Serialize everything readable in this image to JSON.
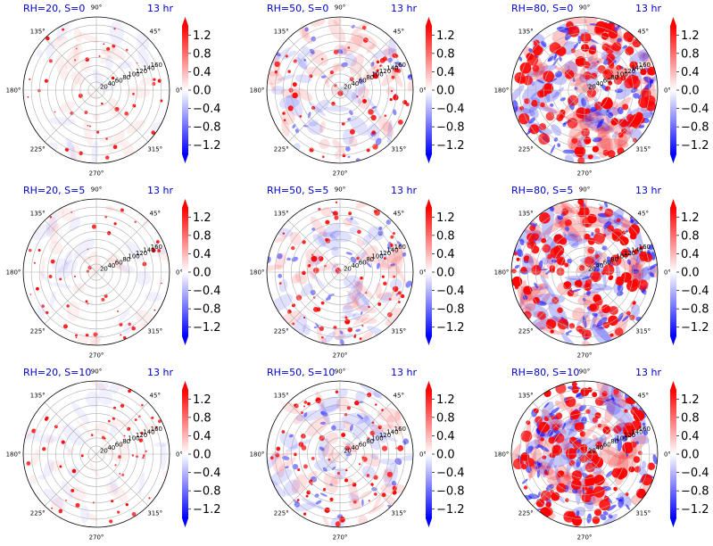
{
  "figure": {
    "panels": [
      {
        "left_title": "RH=20, S=0",
        "right_title": "13 hr",
        "rh": 20,
        "s": 0
      },
      {
        "left_title": "RH=50, S=0",
        "right_title": "13 hr",
        "rh": 50,
        "s": 0
      },
      {
        "left_title": "RH=80, S=0",
        "right_title": "13 hr",
        "rh": 80,
        "s": 0
      },
      {
        "left_title": "RH=20, S=5",
        "right_title": "13 hr",
        "rh": 20,
        "s": 5
      },
      {
        "left_title": "RH=50, S=5",
        "right_title": "13 hr",
        "rh": 50,
        "s": 5
      },
      {
        "left_title": "RH=80, S=5",
        "right_title": "13 hr",
        "rh": 80,
        "s": 5
      },
      {
        "left_title": "RH=20, S=10",
        "right_title": "13 hr",
        "rh": 20,
        "s": 10
      },
      {
        "left_title": "RH=50, S=10",
        "right_title": "13 hr",
        "rh": 50,
        "s": 10
      },
      {
        "left_title": "RH=80, S=10",
        "right_title": "13 hr",
        "rh": 80,
        "s": 10
      }
    ],
    "angular_ticks": [
      "0°",
      "45°",
      "90°",
      "135°",
      "180°",
      "225°",
      "270°",
      "315°"
    ],
    "radial_ticks": [
      "20",
      "40",
      "60",
      "80",
      "100",
      "120",
      "140",
      "160"
    ],
    "colorbar_ticks": [
      "1.2",
      "0.8",
      "0.4",
      "0.0",
      "−0.4",
      "−0.8",
      "−1.2"
    ]
  },
  "chart_data": {
    "type": "heatmap",
    "projection": "polar",
    "grid": true,
    "colormap": "bwr",
    "colors": {
      "negative": "#0000ff",
      "zero": "#ffffff",
      "positive": "#ff0000",
      "title": "#0000cc"
    },
    "clim": [
      -1.4,
      1.4
    ],
    "rlim": [
      0,
      180
    ],
    "layout": "3x3",
    "panels": [
      {
        "title": "RH=20, S=0",
        "time": "13 hr"
      },
      {
        "title": "RH=50, S=0",
        "time": "13 hr"
      },
      {
        "title": "RH=80, S=0",
        "time": "13 hr"
      },
      {
        "title": "RH=20, S=5",
        "time": "13 hr"
      },
      {
        "title": "RH=50, S=5",
        "time": "13 hr"
      },
      {
        "title": "RH=80, S=5",
        "time": "13 hr"
      },
      {
        "title": "RH=20, S=10",
        "time": "13 hr"
      },
      {
        "title": "RH=50, S=10",
        "time": "13 hr"
      },
      {
        "title": "RH=80, S=10",
        "time": "13 hr"
      }
    ],
    "colorbar": {
      "ticks": [
        1.2,
        0.8,
        0.4,
        0.0,
        -0.4,
        -0.8,
        -1.2
      ],
      "extend": "both"
    }
  }
}
